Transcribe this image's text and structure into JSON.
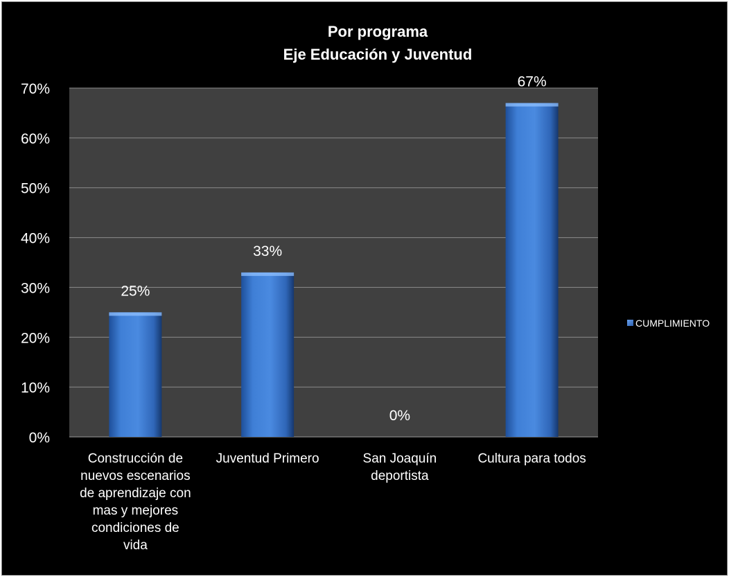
{
  "chart_data": {
    "type": "bar",
    "title_lines": [
      "Por programa",
      "Eje Educación y Juventud"
    ],
    "categories": [
      [
        "Construcción de",
        "nuevos escenarios",
        "de aprendizaje con",
        "mas y mejores",
        "condiciones de",
        "vida"
      ],
      [
        "Juventud Primero"
      ],
      [
        "San Joaquín",
        "deportista"
      ],
      [
        "Cultura para todos"
      ]
    ],
    "series": [
      {
        "name": "CUMPLIMIENTO",
        "values": [
          25,
          33,
          0,
          67
        ],
        "labels": [
          "25%",
          "33%",
          "0%",
          "67%"
        ]
      }
    ],
    "ylim": [
      0,
      70
    ],
    "yticks": [
      "0%",
      "10%",
      "20%",
      "30%",
      "40%",
      "50%",
      "60%",
      "70%"
    ],
    "grid": true,
    "legend_position": "right",
    "colors": {
      "background": "#000000",
      "plot_area": "#404040",
      "bar": "#3a78d0",
      "grid": "#8c8c8c",
      "text": "#ffffff"
    }
  }
}
